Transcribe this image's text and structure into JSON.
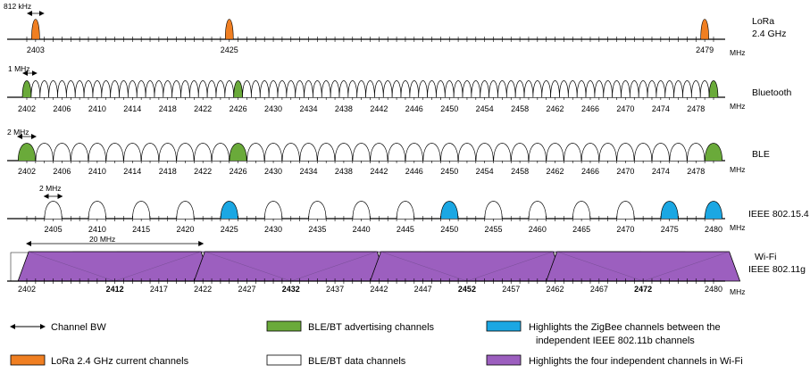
{
  "colors": {
    "lora": "#f07f22",
    "ble_adv": "#6aaa3a",
    "zigbee_highlight": "#1ba7e3",
    "wifi": "#9c5fbf",
    "data_channel": "#ffffff",
    "axis": "#000000"
  },
  "unit": "MHz",
  "rows": [
    {
      "id": "lora",
      "label_lines": [
        "LoRa",
        "2.4 GHz"
      ],
      "bw_annotation": "812 kHz",
      "tick_labels": [
        "2403",
        "2425",
        "2479"
      ],
      "channels": [
        2403,
        2425,
        2479
      ]
    },
    {
      "id": "bluetooth",
      "label_lines": [
        "Bluetooth"
      ],
      "bw_annotation": "1 MHz",
      "tick_labels": [
        "2402",
        "2406",
        "2410",
        "2414",
        "2418",
        "2422",
        "2426",
        "2430",
        "2434",
        "2438",
        "2442",
        "2446",
        "2450",
        "2454",
        "2458",
        "2462",
        "2466",
        "2470",
        "2474",
        "2478"
      ],
      "advertising_channels": [
        2402,
        2426,
        2480
      ]
    },
    {
      "id": "ble",
      "label_lines": [
        "BLE"
      ],
      "bw_annotation": "2 MHz",
      "tick_labels": [
        "2402",
        "2406",
        "2410",
        "2414",
        "2418",
        "2422",
        "2426",
        "2430",
        "2434",
        "2438",
        "2442",
        "2446",
        "2450",
        "2454",
        "2458",
        "2462",
        "2466",
        "2470",
        "2474",
        "2478"
      ],
      "advertising_channels": [
        2402,
        2426,
        2480
      ]
    },
    {
      "id": "zigbee",
      "label_lines": [
        "IEEE 802.15.4"
      ],
      "bw_annotation": "2 MHz",
      "tick_labels": [
        "2405",
        "2410",
        "2415",
        "2420",
        "2425",
        "2430",
        "2435",
        "2440",
        "2445",
        "2450",
        "2455",
        "2460",
        "2465",
        "2470",
        "2475",
        "2480"
      ],
      "highlighted_channels": [
        2425,
        2450,
        2475,
        2480
      ]
    },
    {
      "id": "wifi",
      "label_lines": [
        "Wi-Fi",
        "IEEE 802.11g"
      ],
      "bw_annotation": "20 MHz",
      "tick_labels": [
        "2402",
        "2412",
        "2417",
        "2422",
        "2427",
        "2432",
        "2437",
        "2442",
        "2447",
        "2452",
        "2457",
        "2462",
        "2467",
        "2472",
        "2480"
      ],
      "bold_tick_labels": [
        "2412",
        "2432",
        "2452",
        "2472"
      ],
      "independent_channels": [
        2412,
        2432,
        2452,
        2472
      ]
    }
  ],
  "legend": {
    "channel_bw": "Channel BW",
    "ble_adv": "BLE/BT advertising channels",
    "zigbee_line1": "Highlights the ZigBee channels between the",
    "zigbee_line2": "independent IEEE 802.11b channels",
    "lora": "LoRa 2.4 GHz current channels",
    "ble_data": "BLE/BT data channels",
    "wifi": "Highlights the four independent channels in Wi-Fi"
  }
}
